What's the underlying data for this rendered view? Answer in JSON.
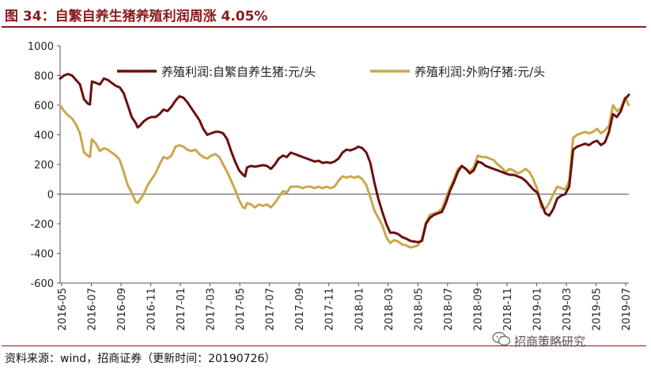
{
  "title": "图 34：自繁自养生猪养殖利润周涨 4.05%",
  "source": "资料来源：wind，招商证券（更新时间：20190726）",
  "watermark": "招商策略研究",
  "colors": {
    "series1": "#6b0f0f",
    "series2": "#c9a84c",
    "rule": "#8b1a1a"
  },
  "chart_data": {
    "type": "line",
    "ylim": [
      -600,
      1000
    ],
    "yticks": [
      -600,
      -400,
      -200,
      0,
      200,
      400,
      600,
      800,
      1000
    ],
    "xticks": [
      "2016-05",
      "2016-07",
      "2016-09",
      "2016-11",
      "2017-01",
      "2017-03",
      "2017-05",
      "2017-07",
      "2017-09",
      "2017-11",
      "2018-01",
      "2018-03",
      "2018-05",
      "2018-07",
      "2018-09",
      "2018-11",
      "2019-01",
      "2019-03",
      "2019-05",
      "2019-07"
    ],
    "x_range": [
      0,
      27.6
    ],
    "legend_position": "top",
    "series": [
      {
        "name": "养殖利润:自繁自养生猪:元/头",
        "points": [
          [
            0,
            780
          ],
          [
            0.2,
            800
          ],
          [
            0.4,
            810
          ],
          [
            0.6,
            800
          ],
          [
            0.8,
            770
          ],
          [
            1.0,
            740
          ],
          [
            1.2,
            640
          ],
          [
            1.4,
            610
          ],
          [
            1.5,
            605
          ],
          [
            1.6,
            760
          ],
          [
            1.8,
            750
          ],
          [
            2.0,
            740
          ],
          [
            2.2,
            780
          ],
          [
            2.4,
            770
          ],
          [
            2.6,
            750
          ],
          [
            2.8,
            730
          ],
          [
            3.0,
            720
          ],
          [
            3.2,
            680
          ],
          [
            3.4,
            600
          ],
          [
            3.6,
            520
          ],
          [
            3.8,
            480
          ],
          [
            3.9,
            450
          ],
          [
            4.0,
            460
          ],
          [
            4.2,
            490
          ],
          [
            4.4,
            510
          ],
          [
            4.6,
            520
          ],
          [
            4.8,
            520
          ],
          [
            5.0,
            540
          ],
          [
            5.2,
            570
          ],
          [
            5.4,
            560
          ],
          [
            5.6,
            590
          ],
          [
            5.8,
            630
          ],
          [
            6.0,
            660
          ],
          [
            6.2,
            650
          ],
          [
            6.4,
            620
          ],
          [
            6.6,
            580
          ],
          [
            6.8,
            540
          ],
          [
            7.0,
            500
          ],
          [
            7.2,
            440
          ],
          [
            7.4,
            400
          ],
          [
            7.6,
            410
          ],
          [
            7.8,
            420
          ],
          [
            8.0,
            420
          ],
          [
            8.2,
            410
          ],
          [
            8.4,
            370
          ],
          [
            8.6,
            290
          ],
          [
            8.8,
            220
          ],
          [
            9.0,
            160
          ],
          [
            9.2,
            130
          ],
          [
            9.3,
            120
          ],
          [
            9.4,
            180
          ],
          [
            9.6,
            190
          ],
          [
            9.8,
            185
          ],
          [
            10.0,
            190
          ],
          [
            10.2,
            195
          ],
          [
            10.4,
            190
          ],
          [
            10.6,
            170
          ],
          [
            10.8,
            200
          ],
          [
            11.0,
            240
          ],
          [
            11.2,
            260
          ],
          [
            11.4,
            250
          ],
          [
            11.6,
            280
          ],
          [
            11.8,
            270
          ],
          [
            12.0,
            260
          ],
          [
            12.2,
            250
          ],
          [
            12.4,
            240
          ],
          [
            12.6,
            230
          ],
          [
            12.8,
            220
          ],
          [
            13.0,
            225
          ],
          [
            13.2,
            210
          ],
          [
            13.4,
            215
          ],
          [
            13.6,
            210
          ],
          [
            13.8,
            220
          ],
          [
            14.0,
            240
          ],
          [
            14.2,
            280
          ],
          [
            14.4,
            300
          ],
          [
            14.6,
            295
          ],
          [
            14.8,
            305
          ],
          [
            15.0,
            320
          ],
          [
            15.2,
            310
          ],
          [
            15.4,
            280
          ],
          [
            15.6,
            210
          ],
          [
            15.8,
            80
          ],
          [
            16.0,
            -30
          ],
          [
            16.2,
            -120
          ],
          [
            16.4,
            -200
          ],
          [
            16.6,
            -260
          ],
          [
            16.8,
            -260
          ],
          [
            17.0,
            -270
          ],
          [
            17.2,
            -290
          ],
          [
            17.4,
            -300
          ],
          [
            17.6,
            -315
          ],
          [
            17.8,
            -320
          ],
          [
            18.0,
            -325
          ],
          [
            18.2,
            -315
          ],
          [
            18.4,
            -200
          ],
          [
            18.6,
            -160
          ],
          [
            18.8,
            -140
          ],
          [
            19.0,
            -130
          ],
          [
            19.2,
            -120
          ],
          [
            19.4,
            -60
          ],
          [
            19.6,
            20
          ],
          [
            19.8,
            80
          ],
          [
            20.0,
            150
          ],
          [
            20.2,
            190
          ],
          [
            20.4,
            170
          ],
          [
            20.6,
            140
          ],
          [
            20.8,
            160
          ],
          [
            21.0,
            220
          ],
          [
            21.2,
            210
          ],
          [
            21.4,
            190
          ],
          [
            21.6,
            180
          ],
          [
            21.8,
            170
          ],
          [
            22.0,
            160
          ],
          [
            22.2,
            150
          ],
          [
            22.4,
            140
          ],
          [
            22.6,
            130
          ],
          [
            22.8,
            130
          ],
          [
            23.0,
            120
          ],
          [
            23.2,
            110
          ],
          [
            23.4,
            90
          ],
          [
            23.6,
            60
          ],
          [
            23.8,
            30
          ],
          [
            24.0,
            10
          ],
          [
            24.2,
            -60
          ],
          [
            24.4,
            -130
          ],
          [
            24.6,
            -145
          ],
          [
            24.8,
            -100
          ],
          [
            25.0,
            -30
          ],
          [
            25.2,
            -10
          ],
          [
            25.4,
            0
          ],
          [
            25.6,
            50
          ],
          [
            25.8,
            300
          ],
          [
            26.0,
            320
          ],
          [
            26.2,
            330
          ],
          [
            26.4,
            340
          ],
          [
            26.6,
            330
          ],
          [
            26.8,
            350
          ],
          [
            27.0,
            360
          ],
          [
            27.2,
            330
          ],
          [
            27.4,
            350
          ],
          [
            27.6,
            420
          ],
          [
            27.8,
            540
          ],
          [
            28.0,
            520
          ],
          [
            28.2,
            560
          ],
          [
            28.4,
            640
          ],
          [
            28.6,
            670
          ]
        ]
      },
      {
        "name": "养殖利润:外购仔猪:元/头",
        "points": [
          [
            0,
            600
          ],
          [
            0.2,
            560
          ],
          [
            0.4,
            530
          ],
          [
            0.6,
            510
          ],
          [
            0.8,
            470
          ],
          [
            1.0,
            410
          ],
          [
            1.2,
            280
          ],
          [
            1.4,
            260
          ],
          [
            1.5,
            250
          ],
          [
            1.6,
            370
          ],
          [
            1.8,
            340
          ],
          [
            2.0,
            290
          ],
          [
            2.2,
            310
          ],
          [
            2.4,
            300
          ],
          [
            2.6,
            280
          ],
          [
            2.8,
            260
          ],
          [
            3.0,
            230
          ],
          [
            3.2,
            150
          ],
          [
            3.4,
            60
          ],
          [
            3.6,
            10
          ],
          [
            3.8,
            -50
          ],
          [
            3.9,
            -60
          ],
          [
            4.0,
            -40
          ],
          [
            4.2,
            0
          ],
          [
            4.4,
            60
          ],
          [
            4.6,
            100
          ],
          [
            4.8,
            140
          ],
          [
            5.0,
            200
          ],
          [
            5.2,
            250
          ],
          [
            5.4,
            240
          ],
          [
            5.6,
            260
          ],
          [
            5.8,
            320
          ],
          [
            6.0,
            330
          ],
          [
            6.2,
            320
          ],
          [
            6.4,
            300
          ],
          [
            6.6,
            290
          ],
          [
            6.8,
            300
          ],
          [
            7.0,
            270
          ],
          [
            7.2,
            250
          ],
          [
            7.4,
            240
          ],
          [
            7.6,
            260
          ],
          [
            7.8,
            270
          ],
          [
            8.0,
            250
          ],
          [
            8.2,
            200
          ],
          [
            8.4,
            150
          ],
          [
            8.6,
            90
          ],
          [
            8.8,
            30
          ],
          [
            9.0,
            -40
          ],
          [
            9.2,
            -90
          ],
          [
            9.3,
            -95
          ],
          [
            9.4,
            -60
          ],
          [
            9.6,
            -70
          ],
          [
            9.8,
            -90
          ],
          [
            10.0,
            -70
          ],
          [
            10.2,
            -80
          ],
          [
            10.4,
            -70
          ],
          [
            10.6,
            -90
          ],
          [
            10.8,
            -60
          ],
          [
            11.0,
            -20
          ],
          [
            11.2,
            20
          ],
          [
            11.4,
            10
          ],
          [
            11.6,
            50
          ],
          [
            11.8,
            50
          ],
          [
            12.0,
            50
          ],
          [
            12.2,
            40
          ],
          [
            12.4,
            50
          ],
          [
            12.6,
            50
          ],
          [
            12.8,
            40
          ],
          [
            13.0,
            50
          ],
          [
            13.2,
            40
          ],
          [
            13.4,
            50
          ],
          [
            13.6,
            40
          ],
          [
            13.8,
            50
          ],
          [
            14.0,
            90
          ],
          [
            14.2,
            120
          ],
          [
            14.4,
            110
          ],
          [
            14.6,
            120
          ],
          [
            14.8,
            110
          ],
          [
            15.0,
            120
          ],
          [
            15.2,
            100
          ],
          [
            15.4,
            60
          ],
          [
            15.6,
            -20
          ],
          [
            15.8,
            -110
          ],
          [
            16.0,
            -160
          ],
          [
            16.2,
            -210
          ],
          [
            16.4,
            -290
          ],
          [
            16.6,
            -330
          ],
          [
            16.8,
            -310
          ],
          [
            17.0,
            -320
          ],
          [
            17.2,
            -340
          ],
          [
            17.4,
            -345
          ],
          [
            17.6,
            -360
          ],
          [
            17.8,
            -355
          ],
          [
            18.0,
            -345
          ],
          [
            18.2,
            -300
          ],
          [
            18.4,
            -190
          ],
          [
            18.6,
            -140
          ],
          [
            18.8,
            -130
          ],
          [
            19.0,
            -120
          ],
          [
            19.2,
            -100
          ],
          [
            19.4,
            -30
          ],
          [
            19.6,
            40
          ],
          [
            19.8,
            100
          ],
          [
            20.0,
            170
          ],
          [
            20.2,
            190
          ],
          [
            20.4,
            170
          ],
          [
            20.6,
            150
          ],
          [
            20.8,
            180
          ],
          [
            21.0,
            260
          ],
          [
            21.2,
            250
          ],
          [
            21.4,
            250
          ],
          [
            21.6,
            240
          ],
          [
            21.8,
            230
          ],
          [
            22.0,
            200
          ],
          [
            22.2,
            180
          ],
          [
            22.4,
            150
          ],
          [
            22.6,
            170
          ],
          [
            22.8,
            160
          ],
          [
            23.0,
            140
          ],
          [
            23.2,
            150
          ],
          [
            23.4,
            170
          ],
          [
            23.6,
            150
          ],
          [
            23.8,
            100
          ],
          [
            24.0,
            30
          ],
          [
            24.2,
            -90
          ],
          [
            24.4,
            -100
          ],
          [
            24.6,
            -60
          ],
          [
            24.8,
            0
          ],
          [
            25.0,
            50
          ],
          [
            25.2,
            40
          ],
          [
            25.4,
            30
          ],
          [
            25.6,
            90
          ],
          [
            25.8,
            380
          ],
          [
            26.0,
            400
          ],
          [
            26.2,
            410
          ],
          [
            26.4,
            420
          ],
          [
            26.6,
            410
          ],
          [
            26.8,
            420
          ],
          [
            27.0,
            440
          ],
          [
            27.2,
            410
          ],
          [
            27.4,
            430
          ],
          [
            27.6,
            460
          ],
          [
            27.8,
            600
          ],
          [
            28.0,
            560
          ],
          [
            28.2,
            580
          ],
          [
            28.4,
            650
          ],
          [
            28.6,
            600
          ]
        ]
      }
    ]
  }
}
